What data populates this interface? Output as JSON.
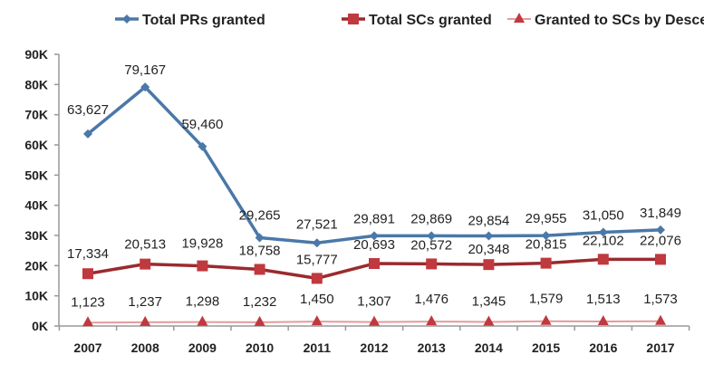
{
  "chart_data": {
    "type": "line",
    "title": "",
    "xlabel": "",
    "ylabel": "",
    "categories": [
      "2007",
      "2008",
      "2009",
      "2010",
      "2011",
      "2012",
      "2013",
      "2014",
      "2015",
      "2016",
      "2017"
    ],
    "ylim": [
      0,
      90000
    ],
    "yticks": [
      0,
      10000,
      20000,
      30000,
      40000,
      50000,
      60000,
      70000,
      80000,
      90000
    ],
    "ytick_labels": [
      "0K",
      "10K",
      "20K",
      "30K",
      "40K",
      "50K",
      "60K",
      "70K",
      "80K",
      "90K"
    ],
    "grid": false,
    "legend_position": "top",
    "series": [
      {
        "name": "Total PRs granted",
        "color": "#4a78a8",
        "marker": "diamond",
        "values": [
          63627,
          79167,
          59460,
          29265,
          27521,
          29891,
          29869,
          29854,
          29955,
          31050,
          31849
        ],
        "labels": [
          "63,627",
          "79,167",
          "59,460",
          "29,265",
          "27,521",
          "29,891",
          "29,869",
          "29,854",
          "29,955",
          "31,050",
          "31,849"
        ]
      },
      {
        "name": "Total SCs granted",
        "color": "#9b2a2e",
        "marker": "square",
        "marker_color": "#c0393f",
        "values": [
          17334,
          20513,
          19928,
          18758,
          15777,
          20693,
          20572,
          20348,
          20815,
          22102,
          22076
        ],
        "labels": [
          "17,334",
          "20,513",
          "19,928",
          "18,758",
          "15,777",
          "20,693",
          "20,572",
          "20,348",
          "20,815",
          "22,102",
          "22,076"
        ]
      },
      {
        "name": "Granted to SCs by Descent*",
        "color": "#e59a9c",
        "marker": "triangle",
        "marker_color": "#c0393f",
        "values": [
          1123,
          1237,
          1298,
          1232,
          1450,
          1307,
          1476,
          1345,
          1579,
          1513,
          1573
        ],
        "labels": [
          "1,123",
          "1,237",
          "1,298",
          "1,232",
          "1,450",
          "1,307",
          "1,476",
          "1,345",
          "1,579",
          "1,513",
          "1,573"
        ]
      }
    ]
  }
}
